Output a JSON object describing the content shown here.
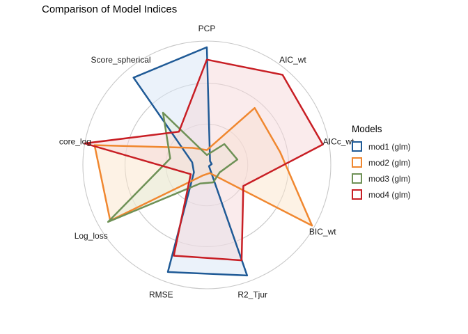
{
  "chart_data": {
    "type": "radar",
    "title": "Comparison of Model Indices",
    "axes": [
      "PCP",
      "AIC_wt",
      "AICc_wt",
      "BIC_wt",
      "R2_Tjur",
      "RMSE",
      "Log_loss",
      "Score_log",
      "Score_spherical"
    ],
    "axis_display": [
      "PCP",
      "AIC_wt",
      "AICc_wt",
      "BIC_wt",
      "R2_Tjur",
      "RMSE",
      "Log_loss",
      "core_log",
      "Score_spherical"
    ],
    "rlim": [
      0,
      1
    ],
    "grid": true,
    "legend": {
      "title": "Models",
      "position": "right"
    },
    "series": [
      {
        "name": "mod1 (glm)",
        "color": "#1F5A96",
        "fill": "#d8e6f6",
        "values": [
          0.95,
          0.04,
          0.04,
          0.02,
          0.95,
          0.92,
          0.12,
          0.12,
          0.92
        ]
      },
      {
        "name": "mod2 (glm)",
        "color": "#F0872F",
        "fill": "#fbe5cc",
        "values": [
          0.12,
          0.6,
          0.6,
          0.98,
          0.07,
          0.09,
          0.9,
          0.92,
          0.18
        ]
      },
      {
        "name": "mod3 (glm)",
        "color": "#6E9156",
        "fill": "#e5eedc",
        "values": [
          0.08,
          0.22,
          0.25,
          0.12,
          0.15,
          0.16,
          0.92,
          0.3,
          0.55
        ]
      },
      {
        "name": "mod4 (glm)",
        "color": "#C81E24",
        "fill": "#f6d8d9",
        "values": [
          0.85,
          0.95,
          0.95,
          0.34,
          0.82,
          0.78,
          0.15,
          1.0,
          0.35
        ]
      }
    ]
  }
}
